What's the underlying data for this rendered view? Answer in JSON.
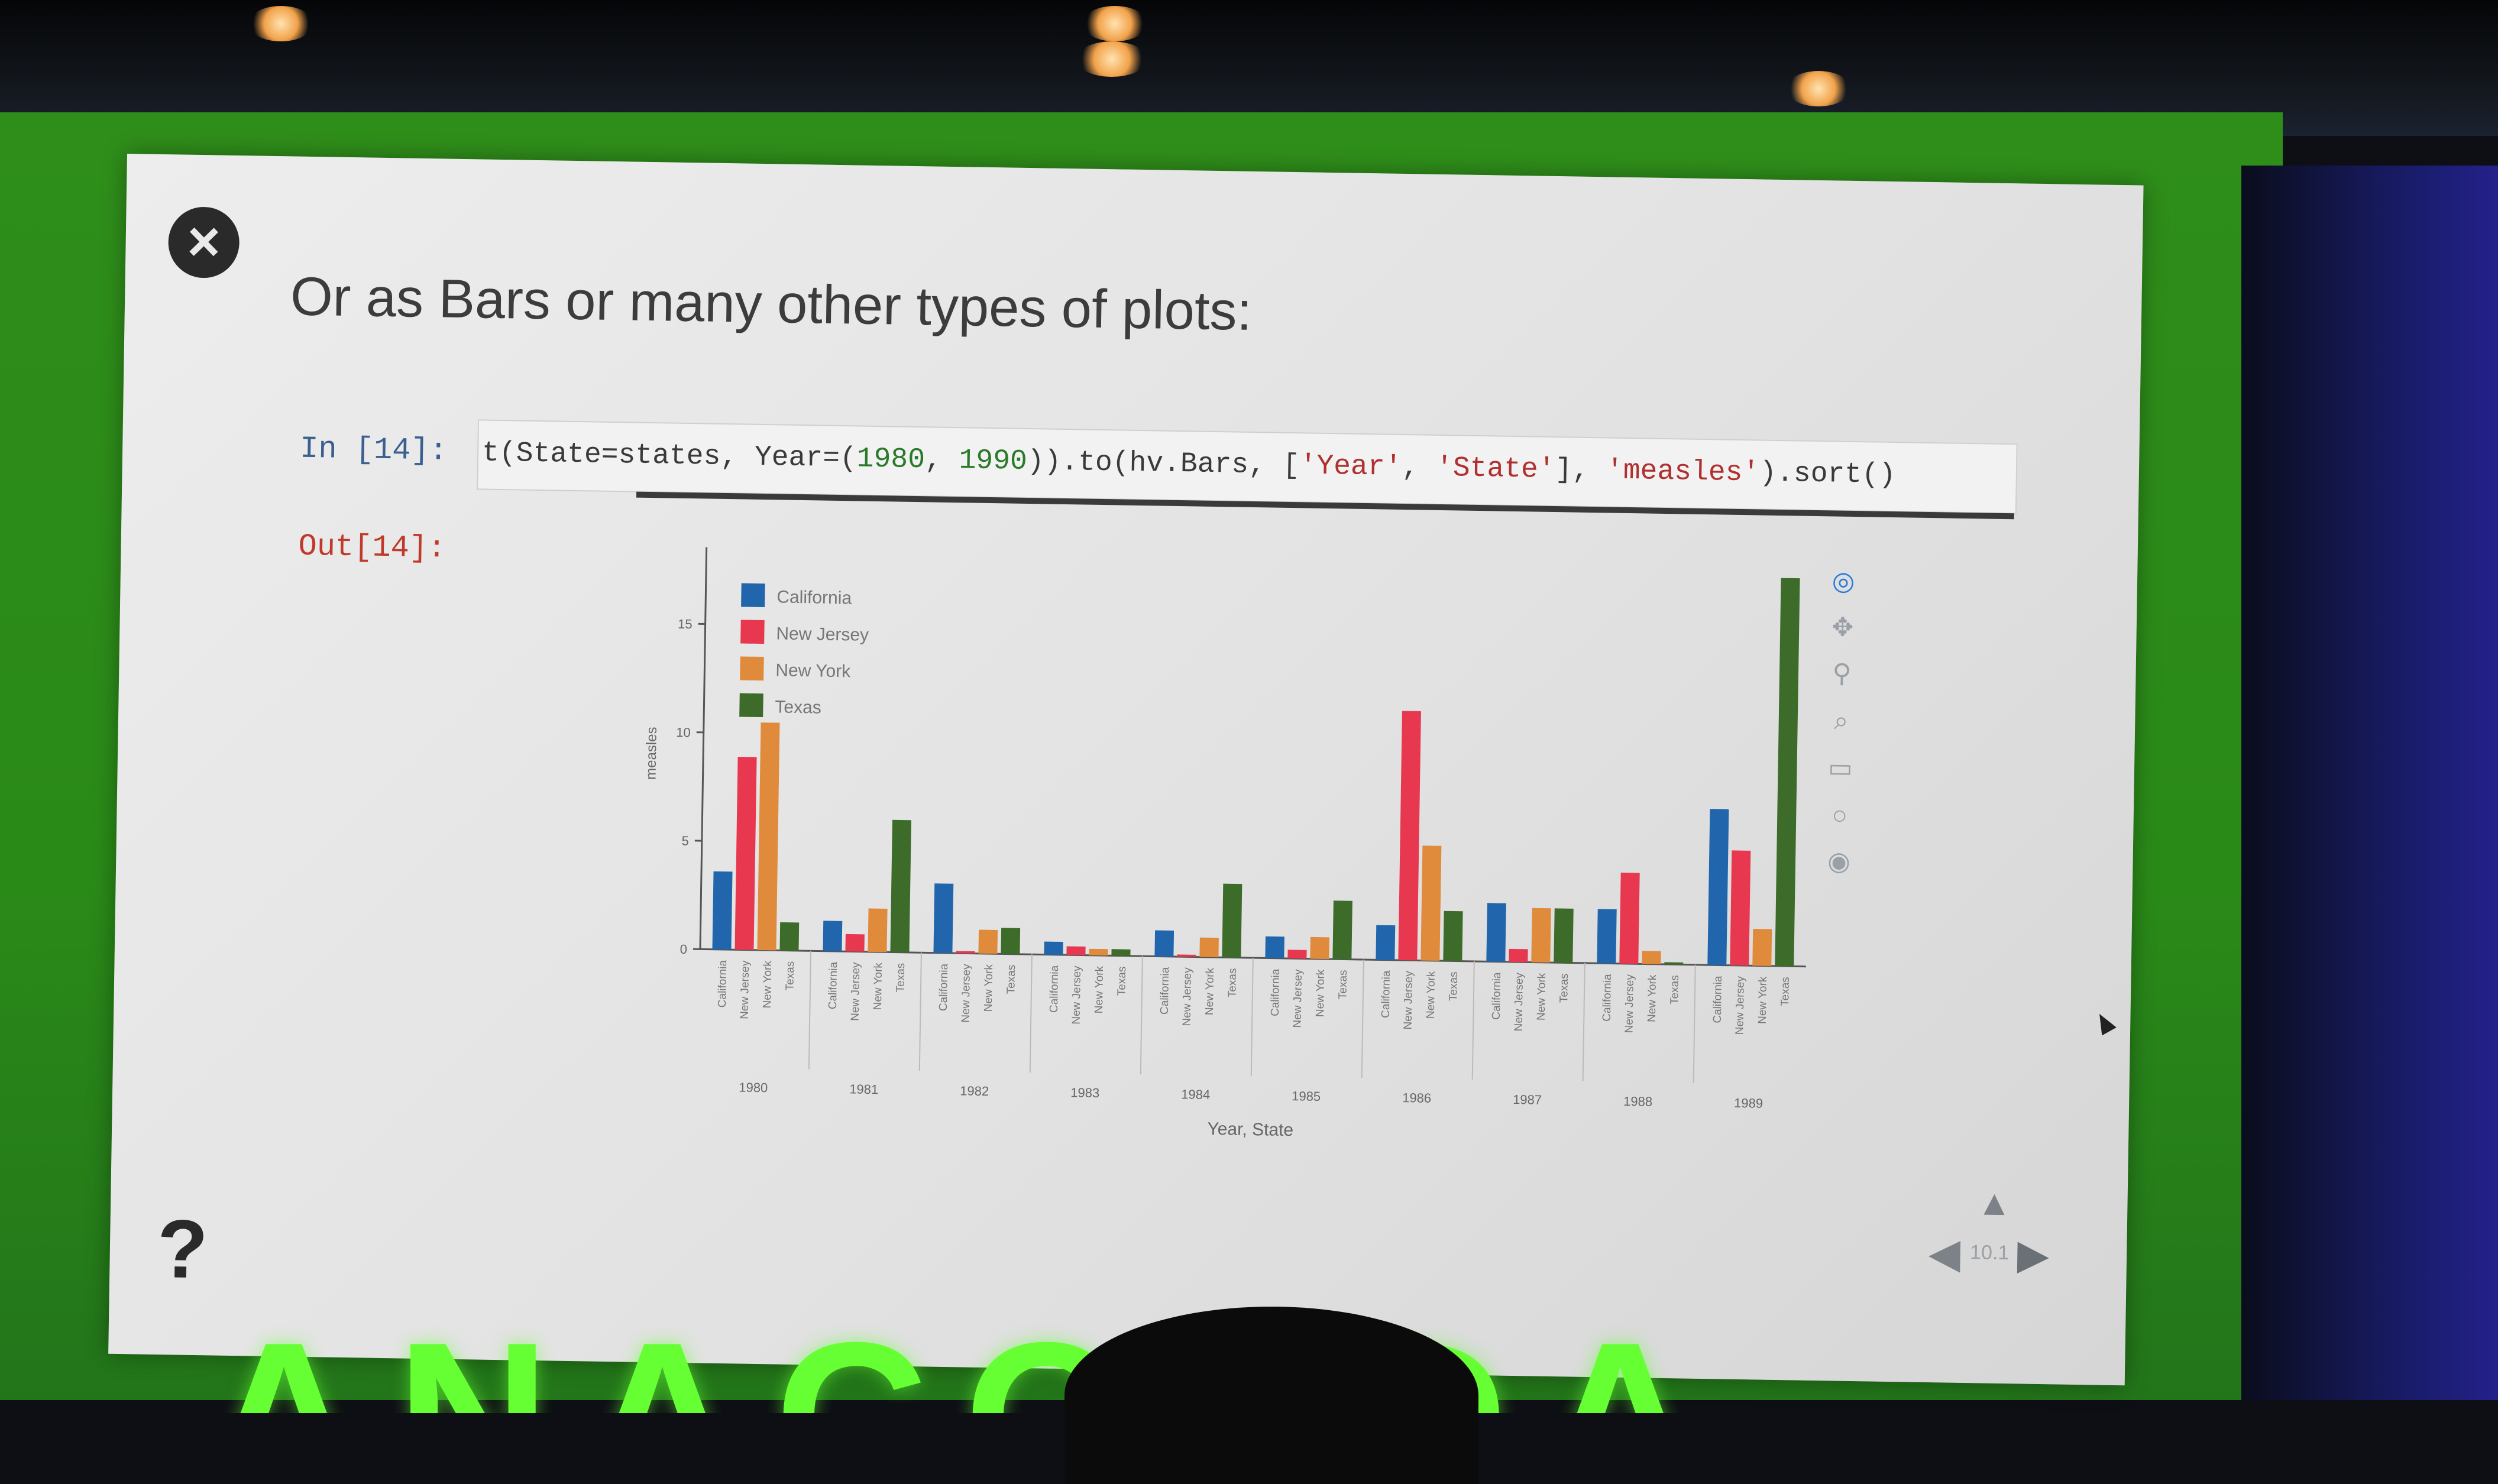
{
  "slide": {
    "title": "Or as Bars or many other types of plots:",
    "close_icon": "×",
    "help_mark": "?"
  },
  "cell": {
    "in_prompt": "In [14]:",
    "out_prompt": "Out[14]:",
    "code_segments": [
      {
        "text": "t(State=states, Year=(",
        "kind": "plain"
      },
      {
        "text": "1980",
        "kind": "num"
      },
      {
        "text": ", ",
        "kind": "plain"
      },
      {
        "text": "1990",
        "kind": "num"
      },
      {
        "text": ")).to(hv.Bars, [",
        "kind": "plain"
      },
      {
        "text": "'Year'",
        "kind": "str"
      },
      {
        "text": ", ",
        "kind": "plain"
      },
      {
        "text": "'State'",
        "kind": "str"
      },
      {
        "text": "], ",
        "kind": "plain"
      },
      {
        "text": "'measles'",
        "kind": "str"
      },
      {
        "text": ").sort()",
        "kind": "plain"
      }
    ]
  },
  "toolbar": {
    "icons": [
      "bokeh-logo-icon",
      "pan-icon",
      "wheel-zoom-icon",
      "box-zoom-icon",
      "save-icon",
      "reset-icon",
      "help-icon"
    ]
  },
  "nav": {
    "label": "10.1",
    "up_icon": "▲",
    "left_icon": "◀",
    "right_icon": "▶"
  },
  "banner": {
    "text": "ANACONDA"
  },
  "colors": {
    "California": "#2166ac",
    "New Jersey": "#e8384f",
    "New York": "#e08a3c",
    "Texas": "#3d6b2a"
  },
  "chart_data": {
    "type": "bar",
    "xlabel": "Year, State",
    "ylabel": "measles",
    "ylim": [
      0,
      18
    ],
    "yticks": [
      0,
      5,
      10,
      15
    ],
    "legend_position": "top-left",
    "categories": [
      "1980",
      "1981",
      "1982",
      "1983",
      "1984",
      "1985",
      "1986",
      "1987",
      "1988",
      "1989"
    ],
    "series": [
      {
        "name": "California",
        "values": [
          3.6,
          1.4,
          3.2,
          0.6,
          1.2,
          1.0,
          1.6,
          2.7,
          2.5,
          7.2
        ]
      },
      {
        "name": "New Jersey",
        "values": [
          8.9,
          0.8,
          0.1,
          0.4,
          0.1,
          0.4,
          11.5,
          0.6,
          4.2,
          5.3
        ]
      },
      {
        "name": "New York",
        "values": [
          10.5,
          2.0,
          1.1,
          0.3,
          0.9,
          1.0,
          5.3,
          2.5,
          0.6,
          1.7
        ]
      },
      {
        "name": "Texas",
        "values": [
          1.3,
          6.1,
          1.2,
          0.3,
          3.4,
          2.7,
          2.3,
          2.5,
          0.1,
          17.9
        ]
      }
    ]
  }
}
